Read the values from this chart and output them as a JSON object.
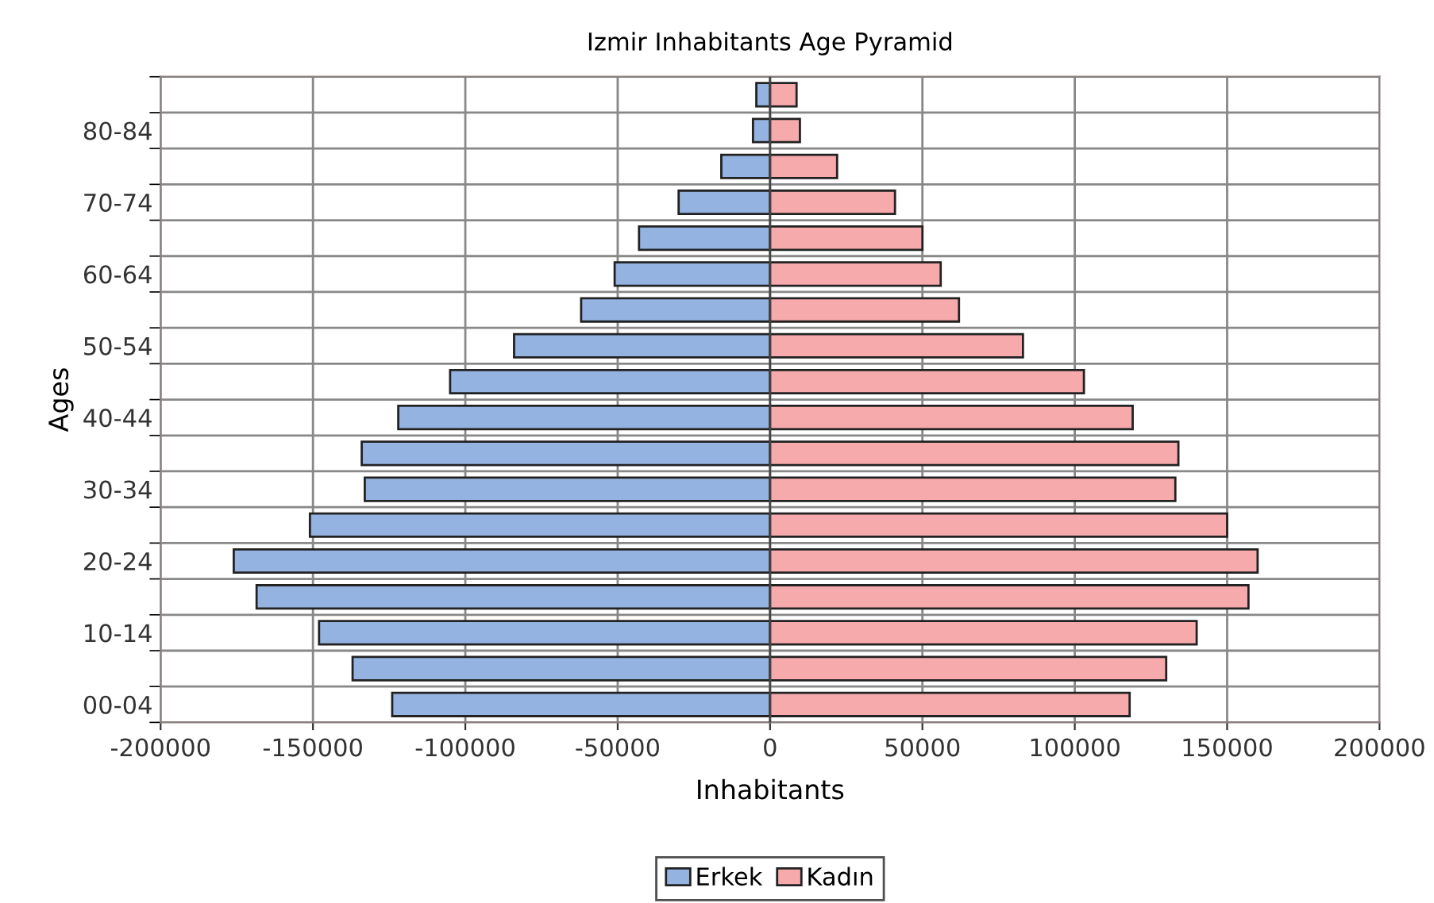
{
  "chart_data": {
    "type": "bar",
    "orientation": "horizontal",
    "stacked": true,
    "title": "Izmir Inhabitants Age Pyramid",
    "xlabel": "Inhabitants",
    "ylabel": "Ages",
    "categories": [
      null,
      "80-84",
      null,
      "70-74",
      null,
      "60-64",
      null,
      "50-54",
      null,
      "40-44",
      null,
      "30-34",
      null,
      "20-24",
      null,
      "10-14",
      null,
      "00-04"
    ],
    "series": [
      {
        "name": "Erkek",
        "color": "#95b3e0",
        "values": [
          -4500,
          -5600,
          -16000,
          -30000,
          -43000,
          -51000,
          -62000,
          -84000,
          -105000,
          -122000,
          -134000,
          -133000,
          -151000,
          -176000,
          -168500,
          -148000,
          -137000,
          -124000
        ]
      },
      {
        "name": "Kadın",
        "color": "#f7aaac",
        "values": [
          8700,
          9800,
          22000,
          41000,
          50000,
          56000,
          62000,
          83000,
          103000,
          119000,
          134000,
          133000,
          150000,
          160000,
          157000,
          140000,
          130000,
          118000
        ]
      }
    ],
    "xlim": [
      -200000,
      200000
    ],
    "xticks": [
      -200000,
      -150000,
      -100000,
      -50000,
      0,
      50000,
      100000,
      150000,
      200000
    ],
    "grid": true,
    "legend": "bottom"
  }
}
